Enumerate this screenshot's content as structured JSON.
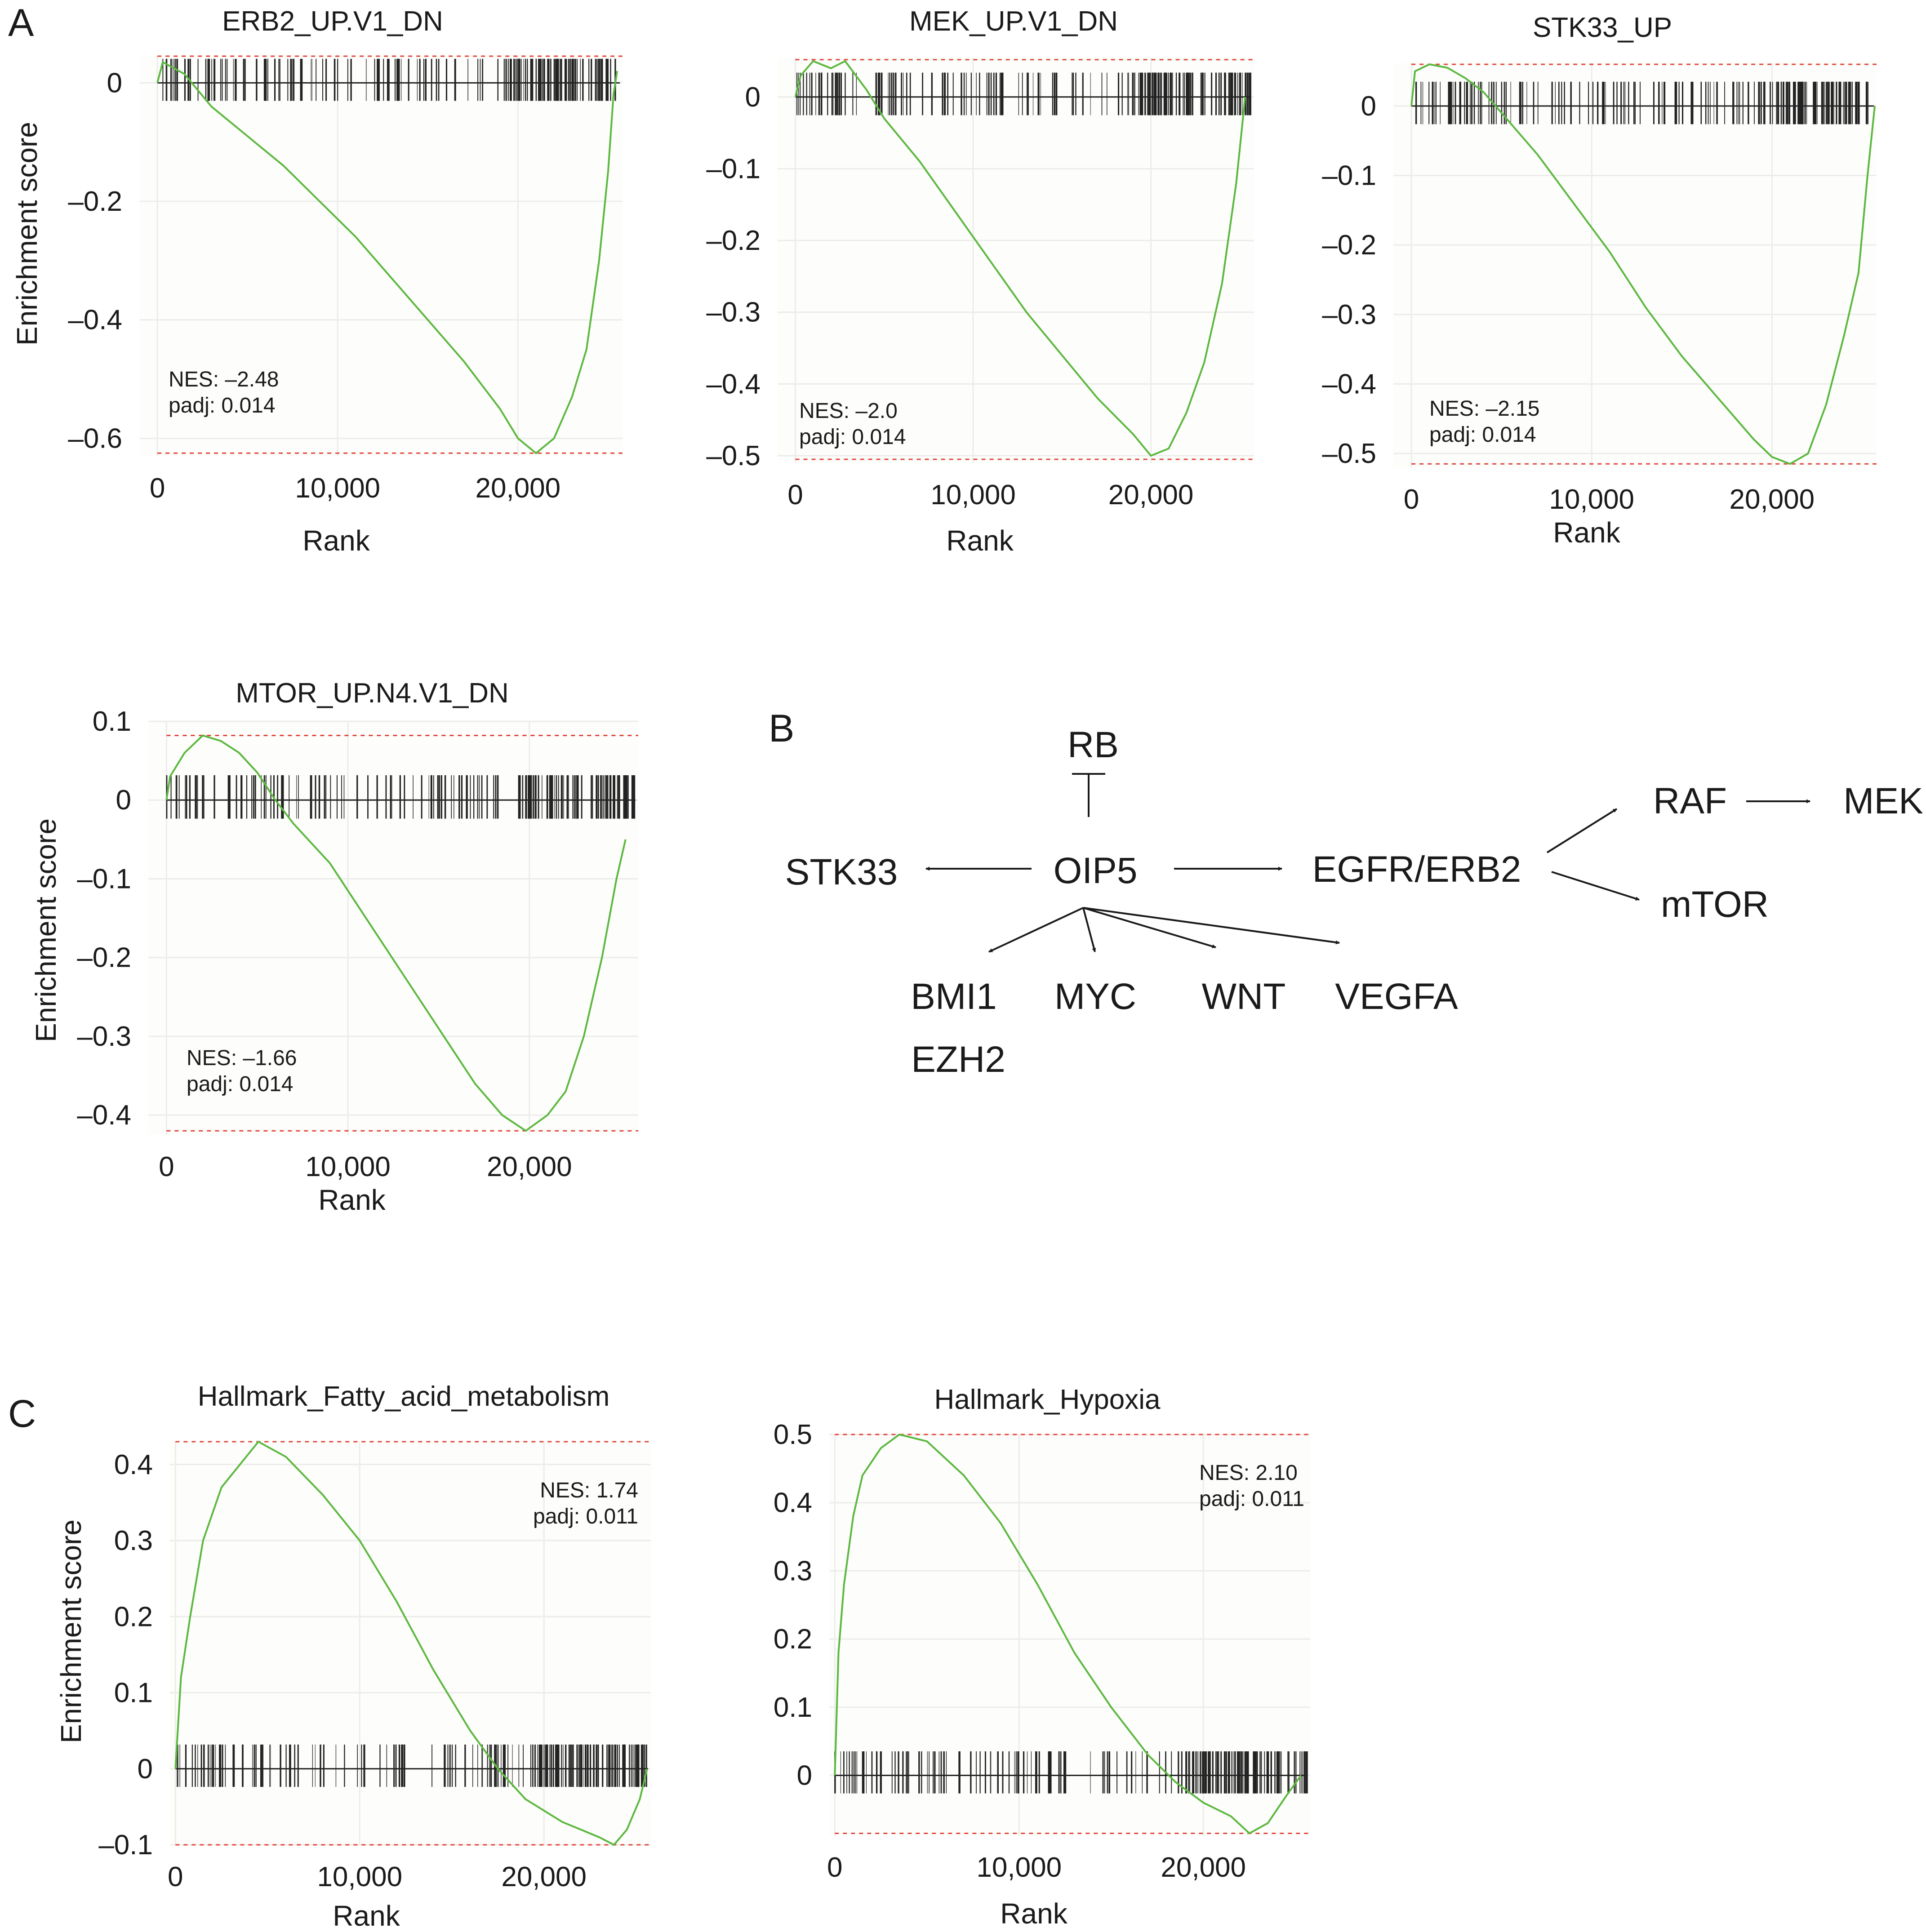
{
  "panels": {
    "A": "A",
    "B": "B",
    "C": "C"
  },
  "charts": [
    {
      "id": "erb2",
      "type": "line",
      "title": "ERB2_UP.V1_DN",
      "xlabel": "Rank",
      "ylabel": "Enrichment score",
      "xlim": [
        -1000,
        25800
      ],
      "ylim": [
        -0.63,
        0.045
      ],
      "xticks": [
        0,
        10000,
        20000
      ],
      "xtick_labels": [
        "0",
        "10,000",
        "20,000"
      ],
      "yticks": [
        0,
        -0.2,
        -0.4,
        -0.6
      ],
      "ytick_labels": [
        "0",
        "–0.2",
        "–0.4",
        "–0.6"
      ],
      "es_max": 0.045,
      "es_min": -0.625,
      "line_color": "#5cb83f",
      "threshold_color": "#e0443a",
      "tick_band": "top",
      "curve": [
        [
          0,
          0.0
        ],
        [
          300,
          0.035
        ],
        [
          1500,
          0.015
        ],
        [
          3000,
          -0.04
        ],
        [
          5000,
          -0.09
        ],
        [
          7000,
          -0.14
        ],
        [
          9000,
          -0.2
        ],
        [
          11000,
          -0.26
        ],
        [
          13000,
          -0.33
        ],
        [
          15000,
          -0.4
        ],
        [
          17000,
          -0.47
        ],
        [
          19000,
          -0.55
        ],
        [
          20000,
          -0.6
        ],
        [
          21000,
          -0.625
        ],
        [
          22000,
          -0.6
        ],
        [
          23000,
          -0.53
        ],
        [
          23800,
          -0.45
        ],
        [
          24500,
          -0.3
        ],
        [
          25000,
          -0.15
        ],
        [
          25300,
          -0.02
        ],
        [
          25500,
          0.02
        ]
      ],
      "stats": {
        "nes": "NES: –2.48",
        "padj": "padj: 0.014"
      }
    },
    {
      "id": "mek",
      "type": "line",
      "title": "MEK_UP.V1_DN",
      "xlabel": "Rank",
      "ylabel": "",
      "xlim": [
        -1000,
        25800
      ],
      "ylim": [
        -0.51,
        0.055
      ],
      "xticks": [
        0,
        10000,
        20000
      ],
      "xtick_labels": [
        "0",
        "10,000",
        "20,000"
      ],
      "yticks": [
        0,
        -0.1,
        -0.2,
        -0.3,
        -0.4,
        -0.5
      ],
      "ytick_labels": [
        "0",
        "–0.1",
        "–0.2",
        "–0.3",
        "–0.4",
        "–0.5"
      ],
      "es_max": 0.052,
      "es_min": -0.505,
      "line_color": "#5cb83f",
      "threshold_color": "#e0443a",
      "tick_band": "top",
      "curve": [
        [
          0,
          0.0
        ],
        [
          300,
          0.03
        ],
        [
          1000,
          0.05
        ],
        [
          2000,
          0.04
        ],
        [
          2800,
          0.05
        ],
        [
          4000,
          0.01
        ],
        [
          5000,
          -0.03
        ],
        [
          7000,
          -0.09
        ],
        [
          9000,
          -0.16
        ],
        [
          11000,
          -0.23
        ],
        [
          13000,
          -0.3
        ],
        [
          15000,
          -0.36
        ],
        [
          17000,
          -0.42
        ],
        [
          19000,
          -0.47
        ],
        [
          20000,
          -0.5
        ],
        [
          21000,
          -0.49
        ],
        [
          22000,
          -0.44
        ],
        [
          23000,
          -0.37
        ],
        [
          24000,
          -0.26
        ],
        [
          24800,
          -0.12
        ],
        [
          25300,
          0.0
        ]
      ],
      "stats": {
        "nes": "NES: –2.0",
        "padj": "padj: 0.014"
      }
    },
    {
      "id": "stk33",
      "type": "line",
      "title": "STK33_UP",
      "xlabel": "Rank",
      "ylabel": "",
      "xlim": [
        -1000,
        25800
      ],
      "ylim": [
        -0.52,
        0.062
      ],
      "xticks": [
        0,
        10000,
        20000
      ],
      "xtick_labels": [
        "0",
        "10,000",
        "20,000"
      ],
      "yticks": [
        0,
        -0.1,
        -0.2,
        -0.3,
        -0.4,
        -0.5
      ],
      "ytick_labels": [
        "0",
        "–0.1",
        "–0.2",
        "–0.3",
        "–0.4",
        "–0.5"
      ],
      "es_max": 0.06,
      "es_min": -0.515,
      "line_color": "#5cb83f",
      "threshold_color": "#e0443a",
      "tick_band": "top",
      "curve": [
        [
          0,
          0.0
        ],
        [
          200,
          0.05
        ],
        [
          1000,
          0.06
        ],
        [
          2000,
          0.055
        ],
        [
          3000,
          0.04
        ],
        [
          4000,
          0.02
        ],
        [
          5000,
          -0.01
        ],
        [
          7000,
          -0.07
        ],
        [
          9000,
          -0.14
        ],
        [
          11000,
          -0.21
        ],
        [
          13000,
          -0.29
        ],
        [
          15000,
          -0.36
        ],
        [
          17000,
          -0.42
        ],
        [
          19000,
          -0.48
        ],
        [
          20000,
          -0.505
        ],
        [
          21000,
          -0.515
        ],
        [
          22000,
          -0.5
        ],
        [
          23000,
          -0.43
        ],
        [
          24000,
          -0.33
        ],
        [
          24800,
          -0.24
        ],
        [
          25300,
          -0.1
        ],
        [
          25700,
          0.0
        ]
      ],
      "stats": {
        "nes": "NES: –2.15",
        "padj": "padj: 0.014"
      }
    },
    {
      "id": "mtor",
      "type": "line",
      "title": "MTOR_UP.N4.V1_DN",
      "xlabel": "Rank",
      "ylabel": "Enrichment score",
      "xlim": [
        -1000,
        26000
      ],
      "ylim": [
        -0.425,
        0.1
      ],
      "xticks": [
        0,
        10000,
        20000
      ],
      "xtick_labels": [
        "0",
        "10,000",
        "20,000"
      ],
      "yticks": [
        0.1,
        0,
        -0.1,
        -0.2,
        -0.3,
        -0.4
      ],
      "ytick_labels": [
        "0.1",
        "0",
        "–0.1",
        "–0.2",
        "–0.3",
        "–0.4"
      ],
      "es_max": 0.082,
      "es_min": -0.42,
      "line_color": "#5cb83f",
      "threshold_color": "#e0443a",
      "tick_band": "top",
      "curve": [
        [
          0,
          0.0
        ],
        [
          200,
          0.03
        ],
        [
          1000,
          0.06
        ],
        [
          2000,
          0.082
        ],
        [
          3000,
          0.075
        ],
        [
          4000,
          0.06
        ],
        [
          5000,
          0.035
        ],
        [
          6000,
          0.0
        ],
        [
          7000,
          -0.03
        ],
        [
          9000,
          -0.08
        ],
        [
          11000,
          -0.15
        ],
        [
          13000,
          -0.22
        ],
        [
          15000,
          -0.29
        ],
        [
          17000,
          -0.36
        ],
        [
          18500,
          -0.4
        ],
        [
          19800,
          -0.42
        ],
        [
          21000,
          -0.4
        ],
        [
          22000,
          -0.37
        ],
        [
          23000,
          -0.3
        ],
        [
          24000,
          -0.2
        ],
        [
          24800,
          -0.1
        ],
        [
          25300,
          -0.05
        ]
      ],
      "stats": {
        "nes": "NES: –1.66",
        "padj": "padj: 0.014"
      }
    },
    {
      "id": "fatty",
      "type": "line",
      "title": "Hallmark_Fatty_acid_metabolism",
      "xlabel": "Rank",
      "ylabel": "Enrichment score",
      "xlim": [
        -300,
        25800
      ],
      "ylim": [
        -0.1,
        0.43
      ],
      "xticks": [
        0,
        10000,
        20000
      ],
      "xtick_labels": [
        "0",
        "10,000",
        "20,000"
      ],
      "yticks": [
        0.4,
        0.3,
        0.2,
        0.1,
        0,
        -0.1
      ],
      "ytick_labels": [
        "0.4",
        "0.3",
        "0.2",
        "0.1",
        "0",
        "–0.1"
      ],
      "es_max": 0.43,
      "es_min": -0.1,
      "line_color": "#5cb83f",
      "threshold_color": "#e0443a",
      "tick_band": "bottom",
      "curve": [
        [
          0,
          0.0
        ],
        [
          300,
          0.12
        ],
        [
          800,
          0.2
        ],
        [
          1500,
          0.3
        ],
        [
          2500,
          0.37
        ],
        [
          3500,
          0.4
        ],
        [
          4500,
          0.43
        ],
        [
          6000,
          0.41
        ],
        [
          8000,
          0.36
        ],
        [
          10000,
          0.3
        ],
        [
          12000,
          0.22
        ],
        [
          14000,
          0.13
        ],
        [
          16000,
          0.05
        ],
        [
          17500,
          0.0
        ],
        [
          19000,
          -0.04
        ],
        [
          21000,
          -0.07
        ],
        [
          23000,
          -0.09
        ],
        [
          23800,
          -0.1
        ],
        [
          24500,
          -0.08
        ],
        [
          25200,
          -0.04
        ],
        [
          25600,
          0.0
        ]
      ],
      "stats": {
        "nes": "NES: 1.74",
        "padj": "padj: 0.011"
      }
    },
    {
      "id": "hypoxia",
      "type": "line",
      "title": "Hallmark_Hypoxia",
      "xlabel": "Rank",
      "ylabel": "",
      "xlim": [
        -300,
        25800
      ],
      "ylim": [
        -0.088,
        0.5
      ],
      "xticks": [
        0,
        10000,
        20000
      ],
      "xtick_labels": [
        "0",
        "10,000",
        "20,000"
      ],
      "yticks": [
        0.5,
        0.4,
        0.3,
        0.2,
        0.1,
        0
      ],
      "ytick_labels": [
        "0.5",
        "0.4",
        "0.3",
        "0.2",
        "0.1",
        "0"
      ],
      "es_max": 0.5,
      "es_min": -0.085,
      "line_color": "#5cb83f",
      "threshold_color": "#e0443a",
      "tick_band": "bottom",
      "curve": [
        [
          0,
          0.0
        ],
        [
          200,
          0.18
        ],
        [
          500,
          0.28
        ],
        [
          1000,
          0.38
        ],
        [
          1500,
          0.44
        ],
        [
          2500,
          0.48
        ],
        [
          3500,
          0.5
        ],
        [
          5000,
          0.49
        ],
        [
          7000,
          0.44
        ],
        [
          9000,
          0.37
        ],
        [
          11000,
          0.28
        ],
        [
          13000,
          0.18
        ],
        [
          15000,
          0.1
        ],
        [
          17000,
          0.03
        ],
        [
          18500,
          -0.01
        ],
        [
          20000,
          -0.04
        ],
        [
          21500,
          -0.06
        ],
        [
          22500,
          -0.085
        ],
        [
          23500,
          -0.07
        ],
        [
          24500,
          -0.03
        ],
        [
          25300,
          0.0
        ]
      ],
      "stats": {
        "nes": "NES: 2.10",
        "padj": "padj: 0.011"
      }
    }
  ],
  "pathway": {
    "nodes": [
      {
        "id": "RB",
        "label": "RB"
      },
      {
        "id": "OIP5",
        "label": "OIP5"
      },
      {
        "id": "STK33",
        "label": "STK33"
      },
      {
        "id": "EGFR",
        "label": "EGFR/ERB2"
      },
      {
        "id": "RAF",
        "label": "RAF"
      },
      {
        "id": "MEK",
        "label": "MEK"
      },
      {
        "id": "mTOR",
        "label": "mTOR"
      },
      {
        "id": "BMI1",
        "label": "BMI1"
      },
      {
        "id": "EZH2",
        "label": "EZH2"
      },
      {
        "id": "MYC",
        "label": "MYC"
      },
      {
        "id": "WNT",
        "label": "WNT"
      },
      {
        "id": "VEGFA",
        "label": "VEGFA"
      }
    ],
    "edges": [
      {
        "from": "RB",
        "to": "OIP5",
        "type": "inhibition"
      },
      {
        "from": "OIP5",
        "to": "STK33",
        "type": "activation"
      },
      {
        "from": "OIP5",
        "to": "EGFR",
        "type": "activation"
      },
      {
        "from": "EGFR",
        "to": "RAF",
        "type": "activation"
      },
      {
        "from": "RAF",
        "to": "MEK",
        "type": "activation"
      },
      {
        "from": "EGFR",
        "to": "mTOR",
        "type": "activation"
      },
      {
        "from": "OIP5",
        "to": "BMI1",
        "type": "activation"
      },
      {
        "from": "OIP5",
        "to": "MYC",
        "type": "activation"
      },
      {
        "from": "OIP5",
        "to": "WNT",
        "type": "activation"
      },
      {
        "from": "OIP5",
        "to": "VEGFA",
        "type": "activation"
      }
    ]
  }
}
